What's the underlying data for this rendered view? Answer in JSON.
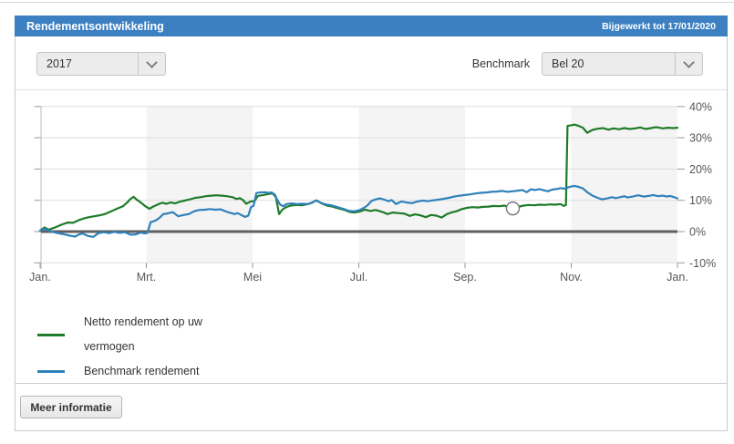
{
  "header": {
    "title": "Rendementsontwikkeling",
    "updated": "Bijgewerkt tot 17/01/2020"
  },
  "controls": {
    "year_select": {
      "value": "2017"
    },
    "benchmark_label": "Benchmark",
    "benchmark_select": {
      "value": "Bel 20"
    }
  },
  "chart_data": {
    "type": "line",
    "x_axis": {
      "tick_labels": [
        "Jan.",
        "Mrt.",
        "Mei",
        "Jul.",
        "Sep.",
        "Nov.",
        "Jan."
      ],
      "tick_positions_months": [
        0,
        2,
        4,
        6,
        8,
        10,
        12
      ]
    },
    "y_axis": {
      "tick_labels": [
        "40%",
        "30%",
        "20%",
        "10%",
        "0%",
        "-10%"
      ],
      "tick_values": [
        40,
        30,
        20,
        10,
        0,
        -10
      ],
      "range": [
        -10,
        40
      ],
      "position": "right"
    },
    "bands_months": [
      [
        2,
        4
      ],
      [
        6,
        8
      ],
      [
        10,
        12
      ]
    ],
    "zero_line": true,
    "style": {
      "band_color": "#f4f4f4",
      "grid_color": "#dddddd",
      "zero_line_color": "#5f5f5f",
      "axis_color": "#bbbbbb",
      "tick_color": "#999999"
    },
    "marker": {
      "series": "Netto rendement op uw vermogen",
      "x_month": 8.9,
      "value": 7.4
    },
    "series": [
      {
        "name": "Netto rendement op uw vermogen",
        "color": "#1e7b28",
        "points": [
          [
            0,
            0.3
          ],
          [
            0.08,
            1.3
          ],
          [
            0.16,
            0.6
          ],
          [
            0.28,
            1.3
          ],
          [
            0.4,
            2.2
          ],
          [
            0.52,
            2.9
          ],
          [
            0.62,
            2.8
          ],
          [
            0.72,
            3.6
          ],
          [
            0.82,
            4.2
          ],
          [
            0.92,
            4.6
          ],
          [
            1.02,
            4.9
          ],
          [
            1.12,
            5.2
          ],
          [
            1.22,
            5.6
          ],
          [
            1.34,
            6.5
          ],
          [
            1.46,
            7.4
          ],
          [
            1.56,
            8.1
          ],
          [
            1.64,
            9.3
          ],
          [
            1.7,
            10.4
          ],
          [
            1.76,
            11.1
          ],
          [
            1.82,
            10.2
          ],
          [
            1.9,
            9.2
          ],
          [
            1.98,
            8.1
          ],
          [
            2.06,
            7.3
          ],
          [
            2.14,
            8.1
          ],
          [
            2.22,
            8.7
          ],
          [
            2.3,
            9.2
          ],
          [
            2.38,
            8.9
          ],
          [
            2.46,
            9.3
          ],
          [
            2.54,
            9.0
          ],
          [
            2.62,
            9.5
          ],
          [
            2.72,
            9.9
          ],
          [
            2.82,
            10.3
          ],
          [
            2.92,
            10.8
          ],
          [
            3.02,
            11.0
          ],
          [
            3.12,
            11.3
          ],
          [
            3.22,
            11.5
          ],
          [
            3.32,
            11.6
          ],
          [
            3.42,
            11.5
          ],
          [
            3.52,
            11.3
          ],
          [
            3.62,
            11.0
          ],
          [
            3.7,
            10.4
          ],
          [
            3.76,
            10.7
          ],
          [
            3.82,
            10.1
          ],
          [
            3.88,
            8.9
          ],
          [
            3.96,
            9.6
          ],
          [
            4.04,
            9.8
          ],
          [
            4.1,
            11.4
          ],
          [
            4.2,
            11.7
          ],
          [
            4.3,
            12.0
          ],
          [
            4.38,
            12.2
          ],
          [
            4.44,
            11.0
          ],
          [
            4.5,
            5.6
          ],
          [
            4.56,
            7.0
          ],
          [
            4.64,
            7.9
          ],
          [
            4.72,
            8.3
          ],
          [
            4.82,
            8.5
          ],
          [
            4.92,
            8.4
          ],
          [
            5.02,
            8.7
          ],
          [
            5.12,
            9.2
          ],
          [
            5.2,
            10.0
          ],
          [
            5.3,
            9.0
          ],
          [
            5.4,
            8.3
          ],
          [
            5.5,
            8.0
          ],
          [
            5.6,
            7.5
          ],
          [
            5.72,
            7.0
          ],
          [
            5.82,
            6.3
          ],
          [
            5.92,
            6.1
          ],
          [
            6.02,
            6.4
          ],
          [
            6.12,
            7.0
          ],
          [
            6.22,
            6.6
          ],
          [
            6.32,
            6.9
          ],
          [
            6.44,
            6.3
          ],
          [
            6.54,
            5.6
          ],
          [
            6.64,
            6.1
          ],
          [
            6.76,
            5.9
          ],
          [
            6.86,
            5.7
          ],
          [
            6.96,
            5.0
          ],
          [
            7.06,
            5.5
          ],
          [
            7.16,
            5.2
          ],
          [
            7.26,
            4.6
          ],
          [
            7.36,
            5.3
          ],
          [
            7.46,
            5.1
          ],
          [
            7.56,
            4.5
          ],
          [
            7.66,
            5.6
          ],
          [
            7.74,
            6.1
          ],
          [
            7.84,
            6.5
          ],
          [
            7.94,
            7.2
          ],
          [
            8.04,
            7.6
          ],
          [
            8.14,
            7.8
          ],
          [
            8.24,
            7.7
          ],
          [
            8.34,
            7.9
          ],
          [
            8.44,
            8.0
          ],
          [
            8.54,
            8.2
          ],
          [
            8.64,
            8.1
          ],
          [
            8.74,
            8.3
          ],
          [
            8.84,
            7.7
          ],
          [
            8.9,
            7.4
          ],
          [
            9.0,
            7.9
          ],
          [
            9.1,
            8.3
          ],
          [
            9.2,
            8.5
          ],
          [
            9.3,
            8.4
          ],
          [
            9.4,
            8.6
          ],
          [
            9.5,
            8.5
          ],
          [
            9.6,
            8.7
          ],
          [
            9.7,
            8.6
          ],
          [
            9.8,
            8.8
          ],
          [
            9.86,
            8.2
          ],
          [
            9.9,
            8.5
          ],
          [
            9.93,
            33.8
          ],
          [
            10.0,
            34.0
          ],
          [
            10.06,
            34.2
          ],
          [
            10.14,
            33.8
          ],
          [
            10.22,
            33.2
          ],
          [
            10.3,
            31.6
          ],
          [
            10.4,
            32.5
          ],
          [
            10.5,
            32.9
          ],
          [
            10.6,
            33.1
          ],
          [
            10.7,
            32.6
          ],
          [
            10.8,
            33.0
          ],
          [
            10.9,
            32.7
          ],
          [
            11.0,
            33.1
          ],
          [
            11.1,
            32.8
          ],
          [
            11.2,
            33.0
          ],
          [
            11.3,
            33.3
          ],
          [
            11.4,
            32.8
          ],
          [
            11.5,
            33.1
          ],
          [
            11.6,
            33.4
          ],
          [
            11.72,
            33.0
          ],
          [
            11.82,
            33.2
          ],
          [
            11.92,
            33.1
          ],
          [
            12,
            33.2
          ]
        ]
      },
      {
        "name": "Benchmark rendement",
        "color": "#2f81ba",
        "points": [
          [
            0,
            0.2
          ],
          [
            0.08,
            0.9
          ],
          [
            0.16,
            0.3
          ],
          [
            0.26,
            -0.2
          ],
          [
            0.36,
            -0.6
          ],
          [
            0.46,
            -0.9
          ],
          [
            0.56,
            -1.3
          ],
          [
            0.66,
            -1.6
          ],
          [
            0.72,
            -1.0
          ],
          [
            0.8,
            -0.6
          ],
          [
            0.9,
            -1.4
          ],
          [
            1.0,
            -1.7
          ],
          [
            1.1,
            -0.5
          ],
          [
            1.2,
            -0.2
          ],
          [
            1.3,
            -0.5
          ],
          [
            1.4,
            -0.1
          ],
          [
            1.5,
            -0.4
          ],
          [
            1.6,
            -0.2
          ],
          [
            1.7,
            -1.0
          ],
          [
            1.8,
            -0.9
          ],
          [
            1.9,
            -0.3
          ],
          [
            1.96,
            -0.6
          ],
          [
            2.02,
            -0.4
          ],
          [
            2.08,
            3.0
          ],
          [
            2.16,
            3.4
          ],
          [
            2.24,
            4.3
          ],
          [
            2.32,
            5.6
          ],
          [
            2.4,
            5.8
          ],
          [
            2.5,
            6.2
          ],
          [
            2.6,
            4.9
          ],
          [
            2.7,
            5.3
          ],
          [
            2.8,
            5.6
          ],
          [
            2.9,
            6.5
          ],
          [
            3.0,
            6.9
          ],
          [
            3.1,
            7.0
          ],
          [
            3.2,
            7.2
          ],
          [
            3.3,
            7.0
          ],
          [
            3.4,
            7.1
          ],
          [
            3.5,
            6.4
          ],
          [
            3.58,
            6.0
          ],
          [
            3.66,
            5.6
          ],
          [
            3.72,
            5.9
          ],
          [
            3.8,
            5.2
          ],
          [
            3.86,
            4.7
          ],
          [
            3.92,
            5.1
          ],
          [
            3.97,
            7.8
          ],
          [
            4.02,
            8.3
          ],
          [
            4.07,
            12.3
          ],
          [
            4.14,
            12.5
          ],
          [
            4.22,
            12.6
          ],
          [
            4.3,
            12.4
          ],
          [
            4.36,
            12.5
          ],
          [
            4.42,
            11.8
          ],
          [
            4.46,
            10.3
          ],
          [
            4.52,
            8.6
          ],
          [
            4.58,
            8.1
          ],
          [
            4.64,
            8.8
          ],
          [
            4.74,
            9.0
          ],
          [
            4.84,
            8.8
          ],
          [
            4.94,
            8.9
          ],
          [
            5.04,
            8.8
          ],
          [
            5.12,
            9.3
          ],
          [
            5.2,
            9.9
          ],
          [
            5.3,
            9.1
          ],
          [
            5.4,
            8.6
          ],
          [
            5.5,
            8.3
          ],
          [
            5.6,
            7.8
          ],
          [
            5.72,
            7.2
          ],
          [
            5.82,
            6.6
          ],
          [
            5.92,
            6.5
          ],
          [
            6.02,
            6.9
          ],
          [
            6.1,
            7.6
          ],
          [
            6.16,
            8.3
          ],
          [
            6.24,
            9.8
          ],
          [
            6.32,
            10.3
          ],
          [
            6.4,
            10.6
          ],
          [
            6.48,
            10.2
          ],
          [
            6.56,
            9.7
          ],
          [
            6.62,
            10.1
          ],
          [
            6.7,
            8.8
          ],
          [
            6.8,
            9.6
          ],
          [
            6.9,
            9.3
          ],
          [
            7.0,
            9.1
          ],
          [
            7.1,
            9.6
          ],
          [
            7.2,
            9.9
          ],
          [
            7.3,
            9.7
          ],
          [
            7.4,
            10.0
          ],
          [
            7.5,
            10.2
          ],
          [
            7.6,
            10.5
          ],
          [
            7.7,
            10.8
          ],
          [
            7.8,
            11.2
          ],
          [
            7.9,
            11.5
          ],
          [
            8.0,
            11.7
          ],
          [
            8.1,
            11.9
          ],
          [
            8.2,
            12.2
          ],
          [
            8.3,
            12.4
          ],
          [
            8.4,
            12.5
          ],
          [
            8.5,
            12.7
          ],
          [
            8.6,
            12.8
          ],
          [
            8.7,
            13.0
          ],
          [
            8.8,
            12.7
          ],
          [
            8.9,
            12.9
          ],
          [
            9.0,
            13.1
          ],
          [
            9.08,
            13.3
          ],
          [
            9.16,
            12.6
          ],
          [
            9.24,
            13.5
          ],
          [
            9.32,
            13.3
          ],
          [
            9.4,
            13.6
          ],
          [
            9.48,
            13.2
          ],
          [
            9.56,
            12.9
          ],
          [
            9.64,
            13.4
          ],
          [
            9.72,
            13.6
          ],
          [
            9.8,
            13.9
          ],
          [
            9.88,
            13.7
          ],
          [
            9.94,
            14.1
          ],
          [
            10.0,
            14.4
          ],
          [
            10.06,
            14.6
          ],
          [
            10.14,
            14.3
          ],
          [
            10.22,
            13.8
          ],
          [
            10.3,
            12.6
          ],
          [
            10.4,
            11.5
          ],
          [
            10.5,
            10.8
          ],
          [
            10.58,
            10.3
          ],
          [
            10.68,
            10.6
          ],
          [
            10.76,
            11.0
          ],
          [
            10.84,
            10.7
          ],
          [
            10.92,
            11.0
          ],
          [
            11.0,
            11.3
          ],
          [
            11.06,
            10.9
          ],
          [
            11.16,
            11.2
          ],
          [
            11.26,
            11.6
          ],
          [
            11.36,
            11.2
          ],
          [
            11.46,
            11.4
          ],
          [
            11.54,
            11.7
          ],
          [
            11.64,
            11.3
          ],
          [
            11.72,
            11.5
          ],
          [
            11.8,
            11.2
          ],
          [
            11.86,
            11.4
          ],
          [
            11.92,
            11.1
          ],
          [
            12,
            10.6
          ]
        ]
      }
    ]
  },
  "footer": {
    "more_info_label": "Meer informatie"
  },
  "colors": {
    "header_bg": "#3c80c2",
    "accent_green": "#1e7b28",
    "accent_blue": "#2f81ba"
  }
}
